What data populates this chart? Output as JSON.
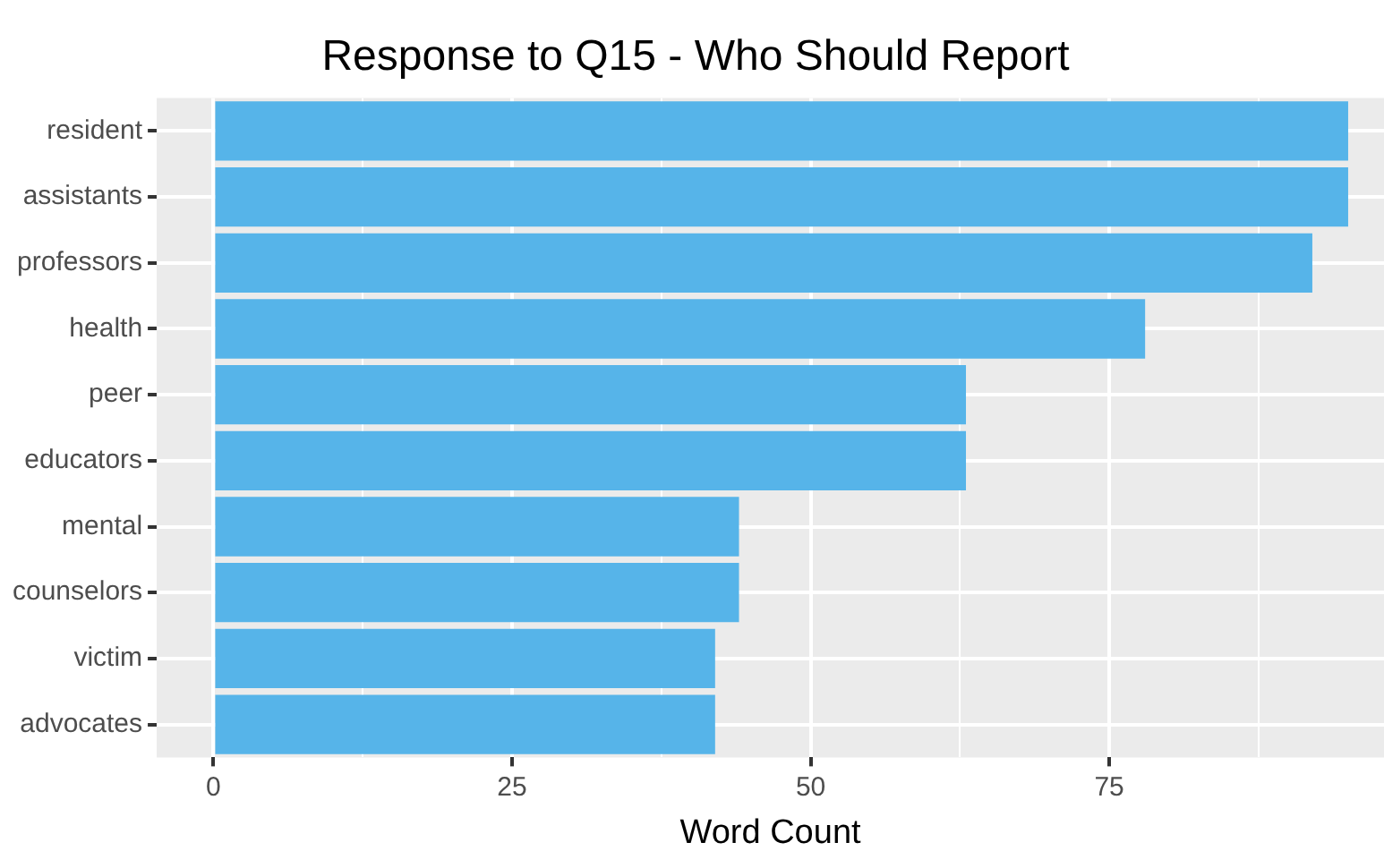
{
  "chart_data": {
    "type": "bar",
    "orientation": "horizontal",
    "title": "Response to Q15 - Who Should Report",
    "xlabel": "Word Count",
    "categories": [
      "resident",
      "assistants",
      "professors",
      "health",
      "peer",
      "educators",
      "mental",
      "counselors",
      "victim",
      "advocates"
    ],
    "values": [
      95,
      95,
      92,
      78,
      63,
      63,
      44,
      44,
      42,
      42
    ],
    "color": "#56b4e9",
    "xlim": [
      -4.75,
      98
    ],
    "xticks": [
      0,
      {
        "value": 12.5,
        "label": null
      },
      25,
      {
        "value": 37.5,
        "label": null
      },
      50,
      {
        "value": 62.5,
        "label": null
      },
      75,
      {
        "value": 87.5,
        "label": null
      }
    ],
    "grid": true,
    "legend": false
  }
}
